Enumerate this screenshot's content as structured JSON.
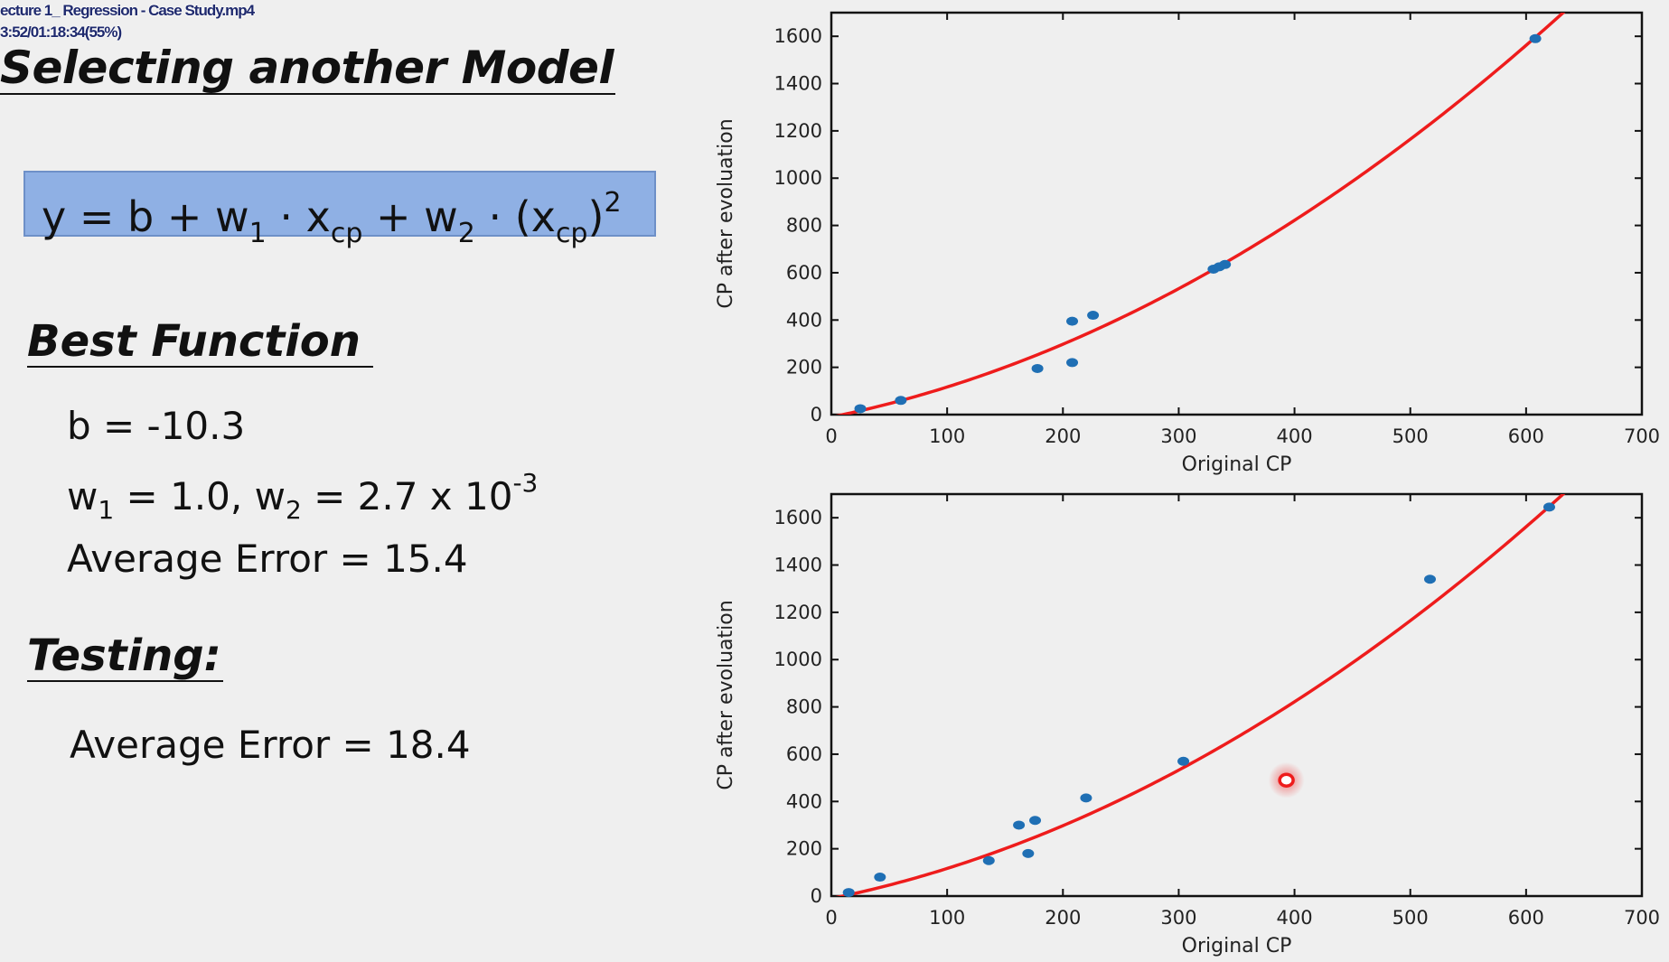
{
  "video": {
    "filename": "ecture 1_ Regression - Case Study.mp4",
    "timecode": "3:52/01:18:34(55%)"
  },
  "slide": {
    "title": "Selecting another Model",
    "formula": {
      "y": "y",
      "eq": " = b + w",
      "w1_sub": "1",
      "mid1": " · x",
      "cp1": "cp",
      "mid2": " + w",
      "w2_sub": "2",
      "mid3": " · (x",
      "cp2": "cp",
      "close": ")",
      "exp": "2"
    },
    "best_function_heading": "Best Function",
    "b_line": "b = -10.3",
    "w_line": {
      "w1": "w",
      "w1_sub": "1",
      "eq1": " = 1.0, w",
      "w2_sub": "2",
      "eq2": " = 2.7 x 10",
      "exp": "-3"
    },
    "train_error": "Average Error = 15.4",
    "testing_heading": "Testing:",
    "test_error": "Average Error = 18.4"
  },
  "colors": {
    "points": "#1f6fb4",
    "curve": "#ee1c1c",
    "formula_box": "#8fb0e4",
    "highlight": "#ee1c1c"
  },
  "chart_data": [
    {
      "type": "scatter",
      "title": "",
      "xlabel": "Original CP",
      "ylabel": "CP after evoluation",
      "xlim": [
        0,
        700
      ],
      "ylim": [
        0,
        1700
      ],
      "xticks": [
        0,
        100,
        200,
        300,
        400,
        500,
        600,
        700
      ],
      "yticks": [
        0,
        200,
        400,
        600,
        800,
        1000,
        1200,
        1400,
        1600
      ],
      "grid": false,
      "series": [
        {
          "kind": "points",
          "x": [
            25,
            60,
            178,
            208,
            208,
            226,
            330,
            335,
            340,
            608
          ],
          "y": [
            25,
            60,
            195,
            220,
            395,
            420,
            615,
            625,
            635,
            1590
          ]
        }
      ],
      "curve": {
        "b": -10.3,
        "w1": 1.0,
        "w2": 0.0027
      }
    },
    {
      "type": "scatter",
      "title": "",
      "xlabel": "Original CP",
      "ylabel": "CP after evoluation",
      "xlim": [
        0,
        700
      ],
      "ylim": [
        0,
        1700
      ],
      "xticks": [
        0,
        100,
        200,
        300,
        400,
        500,
        600,
        700
      ],
      "yticks": [
        0,
        200,
        400,
        600,
        800,
        1000,
        1200,
        1400,
        1600
      ],
      "grid": false,
      "series": [
        {
          "kind": "points",
          "x": [
            15,
            42,
            136,
            162,
            170,
            176,
            220,
            304,
            517,
            620
          ],
          "y": [
            15,
            80,
            150,
            300,
            180,
            320,
            415,
            570,
            1340,
            1645
          ]
        }
      ],
      "highlight": {
        "x": 393,
        "y": 490
      },
      "curve": {
        "b": -10.3,
        "w1": 1.0,
        "w2": 0.0027
      }
    }
  ]
}
